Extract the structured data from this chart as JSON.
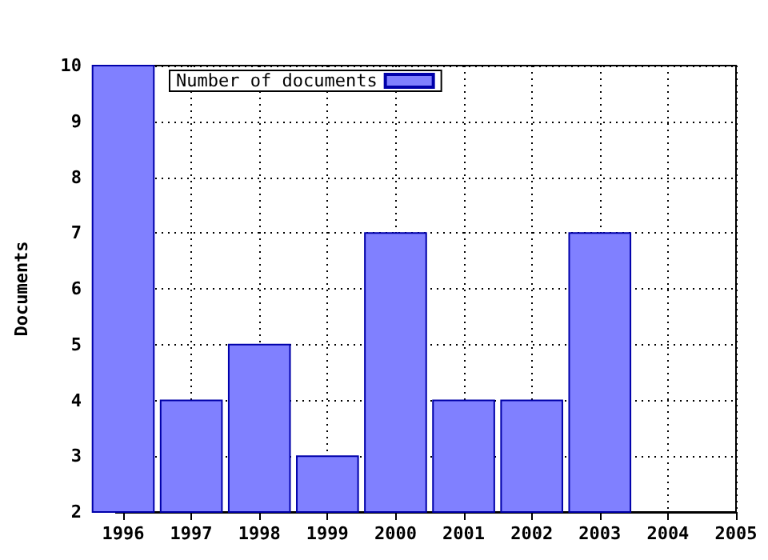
{
  "chart_data": {
    "type": "bar",
    "ylabel": "Documents",
    "x": [
      1996,
      1997,
      1998,
      1999,
      2000,
      2001,
      2002,
      2003
    ],
    "series": [
      {
        "name": "Number of documents",
        "color": "#8080ff",
        "values": [
          10,
          4,
          5,
          3,
          7,
          4,
          4,
          7
        ]
      }
    ],
    "xlim": [
      1996,
      2005
    ],
    "xticks": [
      1996,
      1997,
      1998,
      1999,
      2000,
      2001,
      2002,
      2003,
      2004,
      2005
    ],
    "ylim": [
      2,
      10
    ],
    "yticks": [
      2,
      3,
      4,
      5,
      6,
      7,
      8,
      9,
      10
    ],
    "grid": true,
    "legend": "top left"
  }
}
